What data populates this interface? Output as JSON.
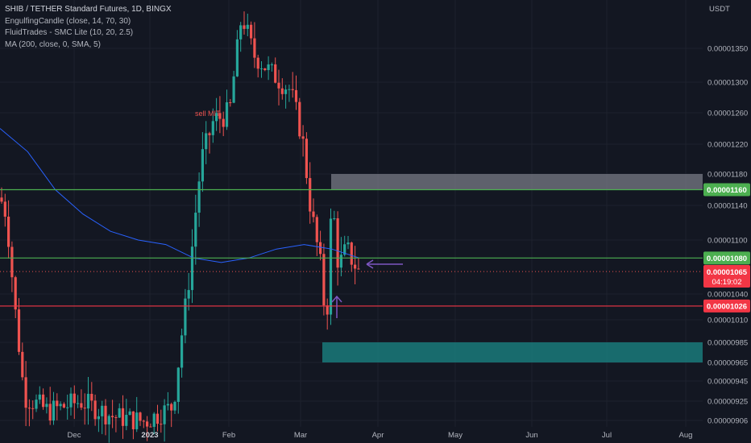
{
  "legend": {
    "title": "SHIB / TETHER Standard Futures, 1D, BINGX",
    "indicators": [
      "EngulfingCandle (close, 14, 70, 30)",
      "FluidTrades - SMC Lite  (10, 20, 2.5)",
      "MA (200, close, 0, SMA, 5)"
    ]
  },
  "price_unit": "USDT",
  "colors": {
    "background": "#131722",
    "up": "#26a69a",
    "down": "#ef5350",
    "ma": "#2962ff",
    "support_green": "#4caf50",
    "resistance_red": "#f23645",
    "supply_zone": "#787b86",
    "demand_zone": "#1a7a7a",
    "arrow": "#7e57c2"
  },
  "chart_data": {
    "type": "candlestick",
    "y_axis": {
      "range": [
        9e-06,
        1.4e-05
      ],
      "ticks": [
        "0.00001350",
        "0.00001300",
        "0.00001260",
        "0.00001220",
        "0.00001180",
        "0.00001140",
        "0.00001100",
        "0.00001040",
        "0.00001010",
        "0.00000985",
        "0.00000965",
        "0.00000945",
        "0.00000925",
        "0.00000906"
      ]
    },
    "x_axis": {
      "ticks": [
        {
          "label": "Dec",
          "year": false
        },
        {
          "label": "2023",
          "year": true
        },
        {
          "label": "Feb",
          "year": false
        },
        {
          "label": "Mar",
          "year": false
        },
        {
          "label": "Apr",
          "year": false
        },
        {
          "label": "May",
          "year": false
        },
        {
          "label": "Jun",
          "year": false
        },
        {
          "label": "Jul",
          "year": false
        },
        {
          "label": "Aug",
          "year": false
        }
      ]
    },
    "horizontal_lines": [
      {
        "price": 1.16e-05,
        "label": "0.00001160",
        "color": "green"
      },
      {
        "price": 1.08e-05,
        "label": "0.00001080",
        "color": "green"
      },
      {
        "price": 1.026e-05,
        "label": "0.00001026",
        "color": "red"
      }
    ],
    "current_price": {
      "label": "0.00001065",
      "countdown": "04:19:02"
    },
    "zones": [
      {
        "type": "supply",
        "from": 1.16e-05,
        "to": 1.18e-05
      },
      {
        "type": "demand",
        "from": 9.65e-06,
        "to": 9.85e-06
      }
    ],
    "annotations": [
      {
        "text": "sell MIT"
      }
    ],
    "ma_200": [
      1.24e-05,
      1.21e-05,
      1.16e-05,
      1.13e-05,
      1.11e-05,
      1.1e-05,
      1.095e-05,
      1.08e-05,
      1.075e-05,
      1.08e-05,
      1.09e-05,
      1.095e-05,
      1.09e-05,
      1.08e-05
    ]
  }
}
